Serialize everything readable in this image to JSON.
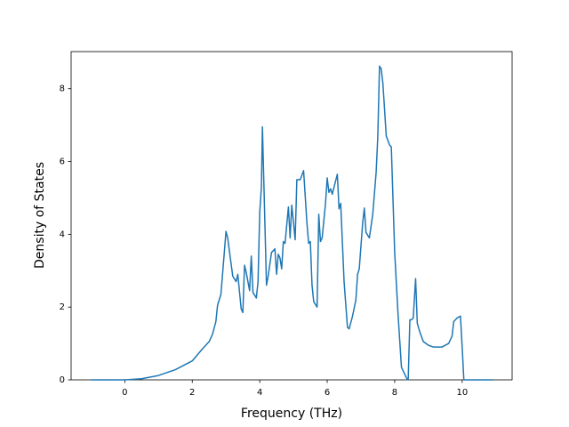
{
  "chart_data": {
    "type": "line",
    "xlabel": "Frequency (THz)",
    "ylabel": "Density of States",
    "color": "#1f77b4",
    "xlim": [
      -1.59,
      11.48
    ],
    "ylim": [
      0,
      9.02
    ],
    "xticks": [
      0,
      2,
      4,
      6,
      8,
      10
    ],
    "yticks": [
      0,
      2,
      4,
      6,
      8
    ],
    "x": [
      -1,
      0,
      0.5,
      1,
      1.5,
      2,
      2.3,
      2.5,
      2.6,
      2.7,
      2.75,
      2.85,
      2.95,
      3.0,
      3.05,
      3.15,
      3.2,
      3.3,
      3.35,
      3.45,
      3.5,
      3.55,
      3.6,
      3.7,
      3.75,
      3.8,
      3.9,
      3.95,
      4.0,
      4.05,
      4.08,
      4.12,
      4.2,
      4.25,
      4.35,
      4.45,
      4.5,
      4.55,
      4.6,
      4.65,
      4.7,
      4.75,
      4.85,
      4.9,
      4.95,
      5.05,
      5.1,
      5.2,
      5.3,
      5.4,
      5.45,
      5.5,
      5.55,
      5.6,
      5.7,
      5.75,
      5.8,
      5.85,
      5.95,
      6.0,
      6.05,
      6.1,
      6.15,
      6.3,
      6.35,
      6.4,
      6.5,
      6.6,
      6.65,
      6.75,
      6.85,
      6.9,
      6.95,
      7.05,
      7.1,
      7.15,
      7.25,
      7.35,
      7.45,
      7.5,
      7.55,
      7.6,
      7.65,
      7.75,
      7.85,
      7.9,
      8.0,
      8.1,
      8.2,
      8.35,
      8.4,
      8.45,
      8.5,
      8.55,
      8.62,
      8.67,
      8.75,
      8.85,
      9.0,
      9.15,
      9.4,
      9.6,
      9.7,
      9.75,
      9.85,
      9.95,
      10.0,
      10.05,
      10.9
    ],
    "values": [
      0,
      0,
      0.03,
      0.12,
      0.28,
      0.52,
      0.85,
      1.05,
      1.25,
      1.6,
      2.05,
      2.35,
      3.5,
      4.08,
      3.9,
      3.2,
      2.85,
      2.7,
      2.9,
      1.95,
      1.85,
      3.15,
      2.95,
      2.45,
      3.4,
      2.4,
      2.25,
      2.7,
      4.6,
      5.3,
      6.95,
      5.5,
      2.6,
      2.85,
      3.5,
      3.6,
      2.9,
      3.45,
      3.35,
      3.05,
      3.8,
      3.75,
      4.75,
      3.9,
      4.8,
      3.85,
      5.5,
      5.5,
      5.75,
      4.3,
      3.75,
      3.8,
      2.6,
      2.15,
      2.0,
      4.55,
      3.8,
      3.9,
      4.85,
      5.55,
      5.15,
      5.25,
      5.1,
      5.65,
      4.7,
      4.85,
      2.7,
      1.45,
      1.4,
      1.75,
      2.2,
      2.9,
      3.05,
      4.3,
      4.72,
      4.05,
      3.9,
      4.55,
      5.7,
      6.7,
      8.62,
      8.55,
      8.15,
      6.7,
      6.45,
      6.4,
      3.5,
      1.8,
      0.35,
      0.05,
      0,
      1.65,
      1.65,
      1.7,
      2.78,
      1.55,
      1.3,
      1.05,
      0.95,
      0.9,
      0.9,
      1.0,
      1.2,
      1.6,
      1.7,
      1.75,
      0.9,
      0,
      0
    ]
  }
}
